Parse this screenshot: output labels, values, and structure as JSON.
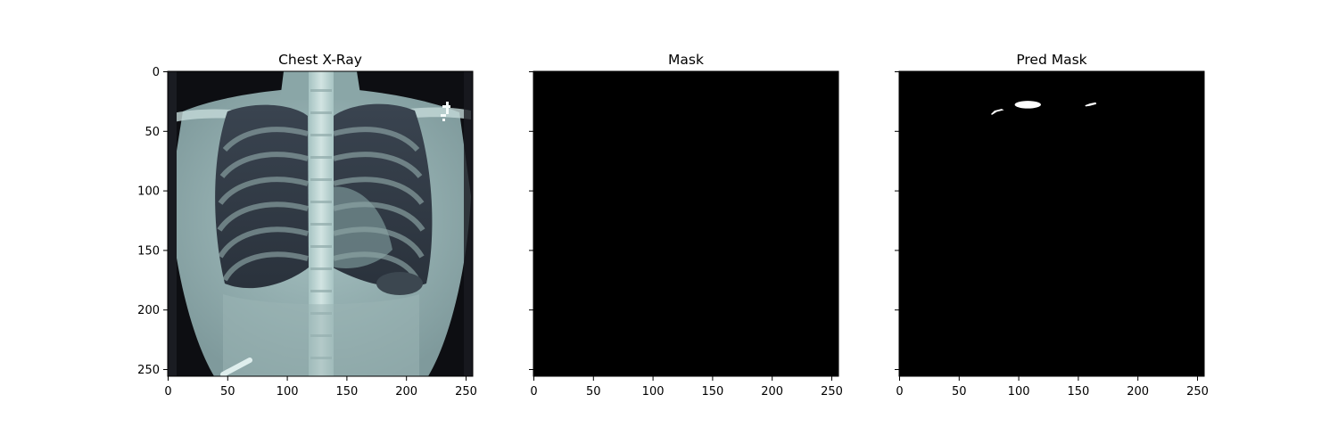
{
  "figure": {
    "background": "#ffffff"
  },
  "chart_data": [
    {
      "type": "image",
      "title": "Chest X-Ray",
      "colormap": "bone",
      "content": "chest radiograph",
      "xlim": [
        0,
        255
      ],
      "ylim": [
        255,
        0
      ],
      "xticks": [
        0,
        50,
        100,
        150,
        200,
        250
      ],
      "yticks": [
        0,
        50,
        100,
        150,
        200,
        250
      ],
      "show_ytick_labels": true
    },
    {
      "type": "image",
      "title": "Mask",
      "colormap": "gray",
      "content": "binary mask (all zero)",
      "xlim": [
        0,
        255
      ],
      "ylim": [
        255,
        0
      ],
      "xticks": [
        0,
        50,
        100,
        150,
        200,
        250
      ],
      "yticks": [
        0,
        50,
        100,
        150,
        200,
        250
      ],
      "show_ytick_labels": false,
      "foreground_regions": []
    },
    {
      "type": "image",
      "title": "Pred Mask",
      "colormap": "gray",
      "content": "binary mask",
      "xlim": [
        0,
        255
      ],
      "ylim": [
        255,
        0
      ],
      "xticks": [
        0,
        50,
        100,
        150,
        200,
        250
      ],
      "yticks": [
        0,
        50,
        100,
        150,
        200,
        250
      ],
      "show_ytick_labels": false,
      "foreground_regions": [
        {
          "shape": "ellipse",
          "cx": 108,
          "cy": 28,
          "rx": 11,
          "ry": 3.2
        },
        {
          "shape": "polygon",
          "points": [
            [
              77,
              36
            ],
            [
              80,
              33
            ],
            [
              86,
              31.5
            ],
            [
              88,
              32.5
            ],
            [
              82,
              34
            ],
            [
              78,
              36.5
            ]
          ]
        },
        {
          "shape": "polygon",
          "points": [
            [
              156,
              28.5
            ],
            [
              160,
              27
            ],
            [
              165,
              26
            ],
            [
              165.5,
              27.5
            ],
            [
              160,
              29
            ],
            [
              156.5,
              29.5
            ]
          ]
        }
      ]
    }
  ]
}
